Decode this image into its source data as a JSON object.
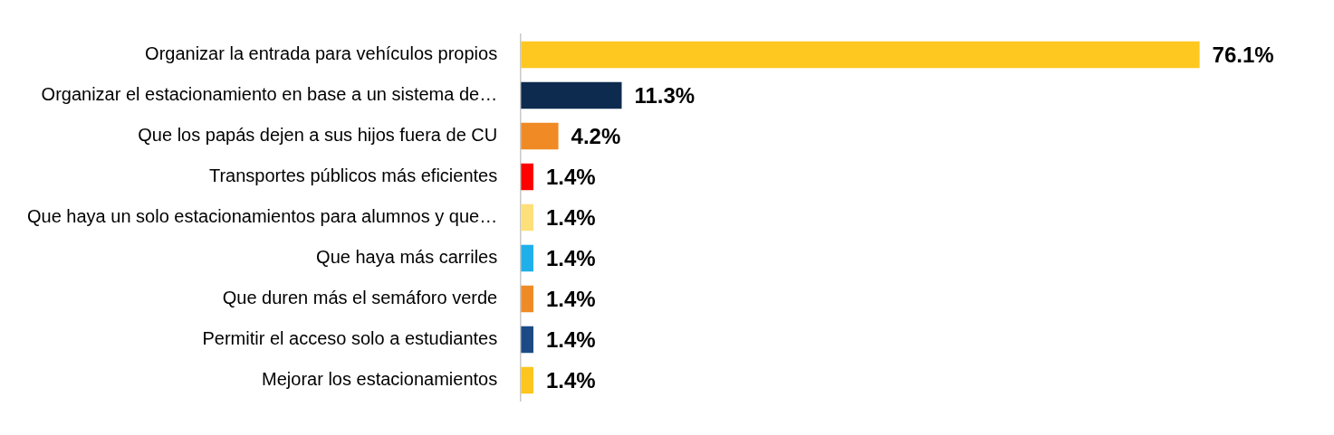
{
  "chart_data": {
    "type": "bar",
    "orientation": "horizontal",
    "categories": [
      "Organizar la entrada para vehículos propios",
      "Organizar el estacionamiento en base a un sistema de…",
      "Que los papás dejen a sus hijos fuera de CU",
      "Transportes públicos más eficientes",
      "Que haya un solo estacionamientos para alumnos y que…",
      "Que haya más carriles",
      "Que duren más el semáforo verde",
      "Permitir el acceso solo a estudiantes",
      "Mejorar los estacionamientos"
    ],
    "values": [
      76.1,
      11.3,
      4.2,
      1.4,
      1.4,
      1.4,
      1.4,
      1.4,
      1.4
    ],
    "colors": [
      "#fec820",
      "#0d2a4f",
      "#f08a24",
      "#ff0000",
      "#fde07a",
      "#1fb0ea",
      "#f08a24",
      "#1b4a85",
      "#fcc61e"
    ],
    "value_labels": [
      "76.1%",
      "11.3%",
      "4.2%",
      "1.4%",
      "1.4%",
      "1.4%",
      "1.4%",
      "1.4%",
      "1.4%"
    ],
    "tick_labels": "y",
    "legend": false
  }
}
